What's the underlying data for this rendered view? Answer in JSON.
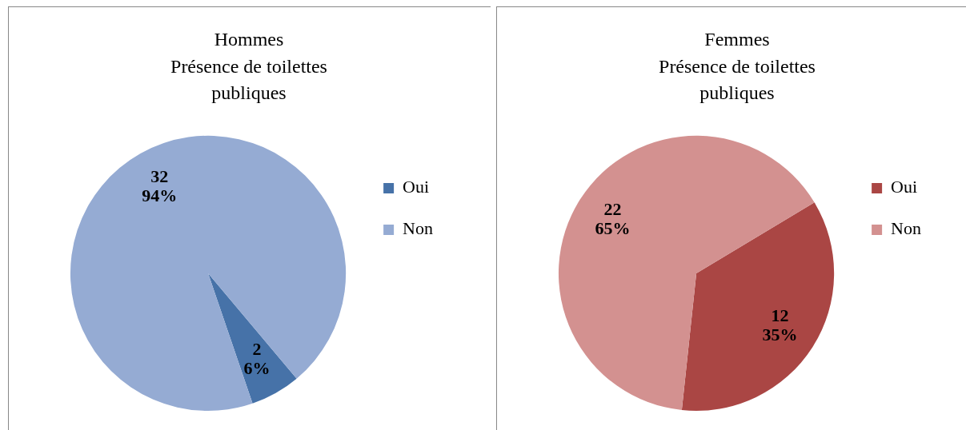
{
  "chart_data": [
    {
      "type": "pie",
      "title": "Hommes\nPrésence de toilettes\npubliques",
      "categories": [
        "Oui",
        "Non"
      ],
      "values": [
        2,
        32
      ],
      "colors": [
        "#4672a8",
        "#95abd3"
      ],
      "value_labels": [
        "2\n6%",
        "32\n94%"
      ],
      "legend": "right"
    },
    {
      "type": "pie",
      "title": "Femmes\nPrésence de toilettes\npubliques",
      "categories": [
        "Oui",
        "Non"
      ],
      "values": [
        12,
        22
      ],
      "colors": [
        "#aa4644",
        "#d39190"
      ],
      "value_labels": [
        "12\n35%",
        "22\n65%"
      ],
      "legend": "right"
    }
  ]
}
